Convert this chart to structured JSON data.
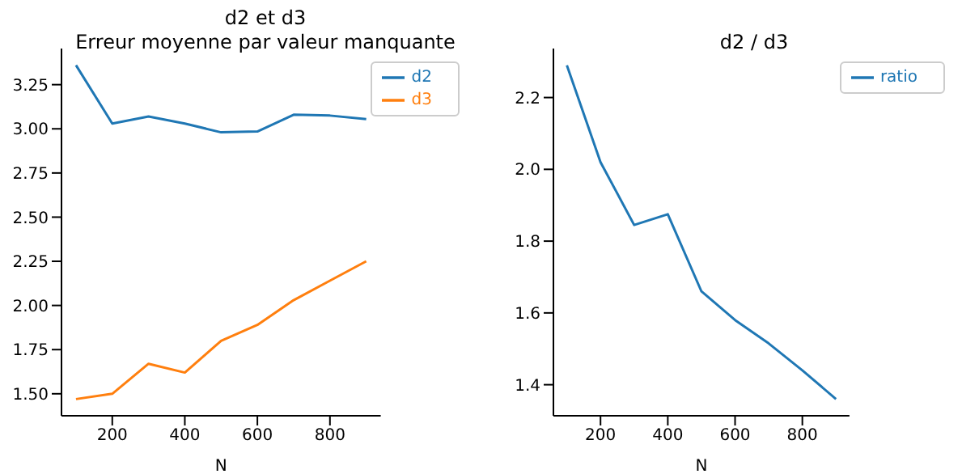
{
  "chart_data": [
    {
      "type": "line",
      "title": "d2 et d3\nErreur moyenne par valeur manquante",
      "xlabel": "N",
      "x": [
        100,
        200,
        300,
        400,
        500,
        600,
        700,
        800,
        900
      ],
      "series": [
        {
          "name": "d2",
          "color": "#1f77b4",
          "values": [
            3.36,
            3.03,
            3.07,
            3.03,
            2.98,
            2.985,
            3.08,
            3.075,
            3.055
          ]
        },
        {
          "name": "d3",
          "color": "#ff7f0e",
          "values": [
            1.47,
            1.5,
            1.67,
            1.62,
            1.8,
            1.89,
            2.03,
            2.14,
            2.25
          ]
        }
      ],
      "xlim": [
        60,
        940
      ],
      "xticks": [
        200,
        400,
        600,
        800
      ],
      "ylim": [
        1.3755,
        3.4545
      ],
      "yticks": [
        {
          "value": 1.5,
          "label": "1.50"
        },
        {
          "value": 1.75,
          "label": "1.75"
        },
        {
          "value": 2.0,
          "label": "2.00"
        },
        {
          "value": 2.25,
          "label": "2.25"
        },
        {
          "value": 2.5,
          "label": "2.50"
        },
        {
          "value": 2.75,
          "label": "2.75"
        },
        {
          "value": 3.0,
          "label": "3.00"
        },
        {
          "value": 3.25,
          "label": "3.25"
        }
      ],
      "legend": "top right"
    },
    {
      "type": "line",
      "title": "d2 / d3",
      "xlabel": "N",
      "x": [
        100,
        200,
        300,
        400,
        500,
        600,
        700,
        800,
        900
      ],
      "series": [
        {
          "name": "ratio",
          "color": "#1f77b4",
          "values": [
            2.29,
            2.02,
            1.845,
            1.875,
            1.66,
            1.58,
            1.515,
            1.44,
            1.36
          ]
        }
      ],
      "xlim": [
        60,
        940
      ],
      "xticks": [
        200,
        400,
        600,
        800
      ],
      "ylim": [
        1.3135,
        2.3365
      ],
      "yticks": [
        {
          "value": 1.4,
          "label": "1.4"
        },
        {
          "value": 1.6,
          "label": "1.6"
        },
        {
          "value": 1.8,
          "label": "1.8"
        },
        {
          "value": 2.0,
          "label": "2.0"
        },
        {
          "value": 2.2,
          "label": "2.2"
        }
      ],
      "legend": "top right"
    }
  ]
}
